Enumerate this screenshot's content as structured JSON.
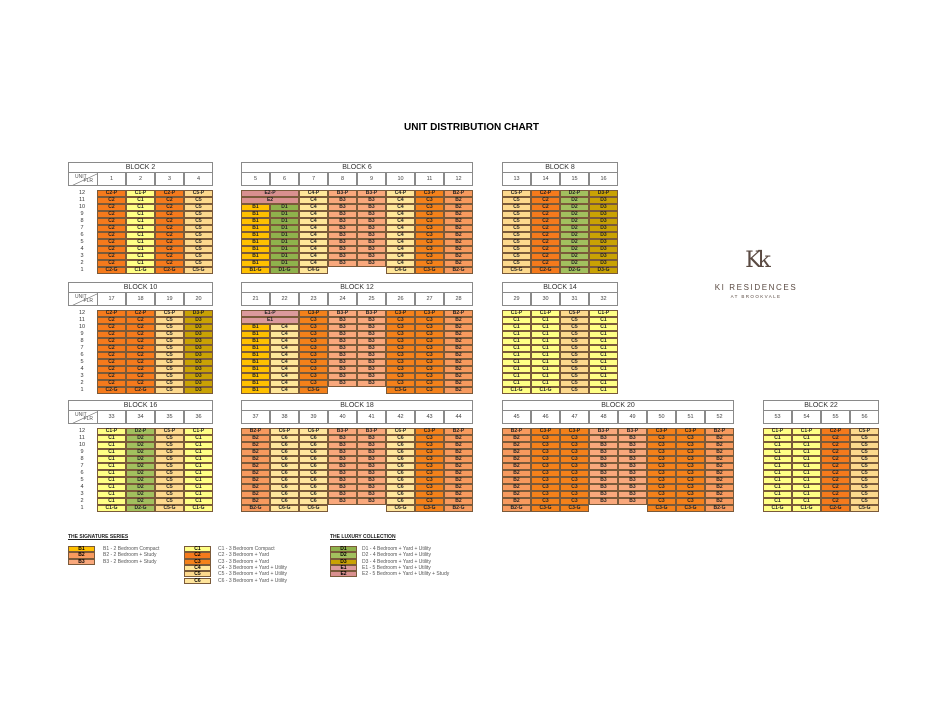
{
  "title": "UNIT DISTRIBUTION CHART",
  "unit_label": "UNIT",
  "flr_label": "FLR",
  "floors": [
    "12",
    "11",
    "10",
    "9",
    "8",
    "7",
    "6",
    "5",
    "4",
    "3",
    "2",
    "1"
  ],
  "colors": {
    "B1": "#ffc000",
    "B2": "#f79a5e",
    "B3": "#f9a87c",
    "C1": "#ffff85",
    "C2": "#f57a1c",
    "C3": "#f4811a",
    "C4": "#ffe699",
    "C5": "#fdd98d",
    "C6": "#ffe59c",
    "D1": "#8fb24c",
    "D2": "#a2c05e",
    "D3": "#c9a204",
    "E1": "#dc9a9c",
    "E2": "#d9908f"
  },
  "blocks": [
    {
      "name": "BLOCK  2",
      "units": [
        "1",
        "2",
        "3",
        "4"
      ],
      "columns": [
        {
          "stack": [
            [
              "C2-P",
              1
            ],
            [
              "C2",
              10
            ],
            [
              "C2-G",
              1
            ]
          ]
        },
        {
          "stack": [
            [
              "C1-P",
              1
            ],
            [
              "C1",
              10
            ],
            [
              "C1-G",
              1
            ]
          ]
        },
        {
          "stack": [
            [
              "C2-P",
              1
            ],
            [
              "C2",
              10
            ],
            [
              "C2-G",
              1
            ]
          ]
        },
        {
          "stack": [
            [
              "C5-P",
              1
            ],
            [
              "C5",
              10
            ],
            [
              "C5-G",
              1
            ]
          ]
        }
      ]
    },
    {
      "name": "BLOCK  6",
      "units": [
        "5",
        "6",
        "7",
        "8",
        "9",
        "10",
        "11",
        "12"
      ],
      "columns": [
        {
          "stack": [
            [
              "E2-P",
              1
            ],
            [
              "E2",
              1
            ],
            [
              "B1",
              9
            ],
            [
              "B1-G",
              1
            ]
          ]
        },
        {
          "stack": [
            [
              null,
              2
            ],
            [
              "D1",
              9
            ],
            [
              "D1-G",
              1
            ]
          ]
        },
        {
          "stack": [
            [
              "C4-P",
              1
            ],
            [
              "C4",
              10
            ],
            [
              "C4-G",
              1
            ]
          ]
        },
        {
          "stack": [
            [
              "B3-P",
              1
            ],
            [
              "B3",
              10
            ],
            [
              "",
              1
            ]
          ]
        },
        {
          "stack": [
            [
              "B3-P",
              1
            ],
            [
              "B3",
              10
            ],
            [
              "",
              1
            ]
          ]
        },
        {
          "stack": [
            [
              "C4-P",
              1
            ],
            [
              "C4",
              10
            ],
            [
              "C4-G",
              1
            ]
          ]
        },
        {
          "stack": [
            [
              "C3-P",
              1
            ],
            [
              "C3",
              10
            ],
            [
              "C3-G",
              1
            ]
          ]
        },
        {
          "stack": [
            [
              "B2-P",
              1
            ],
            [
              "B2",
              10
            ],
            [
              "B2-G",
              1
            ]
          ]
        }
      ]
    },
    {
      "name": "BLOCK  8",
      "units": [
        "13",
        "14",
        "15",
        "16"
      ],
      "columns": [
        {
          "stack": [
            [
              "C5-P",
              1
            ],
            [
              "C5",
              10
            ],
            [
              "C5-G",
              1
            ]
          ]
        },
        {
          "stack": [
            [
              "C2-P",
              1
            ],
            [
              "C2",
              10
            ],
            [
              "C2-G",
              1
            ]
          ]
        },
        {
          "stack": [
            [
              "D2-P",
              1
            ],
            [
              "D2",
              10
            ],
            [
              "D2-G",
              1
            ]
          ]
        },
        {
          "stack": [
            [
              "D3-P",
              1
            ],
            [
              "D3",
              10
            ],
            [
              "D3-G",
              1
            ]
          ]
        }
      ]
    },
    {
      "name": "BLOCK  10",
      "units": [
        "17",
        "18",
        "19",
        "20"
      ],
      "columns": [
        {
          "stack": [
            [
              "C2-P",
              1
            ],
            [
              "C2",
              10
            ],
            [
              "C2-G",
              1
            ]
          ]
        },
        {
          "stack": [
            [
              "C2-P",
              1
            ],
            [
              "C2",
              10
            ],
            [
              "C2-G",
              1
            ]
          ]
        },
        {
          "stack": [
            [
              "C5-P",
              1
            ],
            [
              "C5",
              11
            ]
          ]
        },
        {
          "stack": [
            [
              "D3-P",
              1
            ],
            [
              "D3",
              11
            ]
          ]
        }
      ]
    },
    {
      "name": "BLOCK  12",
      "units": [
        "21",
        "22",
        "23",
        "24",
        "25",
        "26",
        "27",
        "28"
      ],
      "columns": [
        {
          "stack": [
            [
              "E1-P",
              1
            ],
            [
              "E1",
              1
            ],
            [
              "B1",
              10
            ]
          ]
        },
        {
          "stack": [
            [
              null,
              2
            ],
            [
              "C4",
              10
            ]
          ]
        },
        {
          "stack": [
            [
              "C3-P",
              1
            ],
            [
              "C3",
              10
            ],
            [
              "C3-G",
              1
            ]
          ]
        },
        {
          "stack": [
            [
              "B3-P",
              1
            ],
            [
              "B3",
              10
            ],
            [
              "",
              1
            ]
          ]
        },
        {
          "stack": [
            [
              "B3-P",
              1
            ],
            [
              "B3",
              10
            ],
            [
              "",
              1
            ]
          ]
        },
        {
          "stack": [
            [
              "C3-P",
              1
            ],
            [
              "C3",
              10
            ],
            [
              "C3-G",
              1
            ]
          ]
        },
        {
          "stack": [
            [
              "C3-P",
              1
            ],
            [
              "C3",
              11
            ]
          ]
        },
        {
          "stack": [
            [
              "B2-P",
              1
            ],
            [
              "B2",
              11
            ]
          ]
        }
      ]
    },
    {
      "name": "BLOCK  14",
      "units": [
        "29",
        "30",
        "31",
        "32"
      ],
      "columns": [
        {
          "stack": [
            [
              "C1-P",
              1
            ],
            [
              "C1",
              10
            ],
            [
              "C1-G",
              1
            ]
          ]
        },
        {
          "stack": [
            [
              "C1-P",
              1
            ],
            [
              "C1",
              10
            ],
            [
              "C1-G",
              1
            ]
          ]
        },
        {
          "stack": [
            [
              "C5-P",
              1
            ],
            [
              "C5",
              11
            ]
          ]
        },
        {
          "stack": [
            [
              "C1-P",
              1
            ],
            [
              "C1",
              11
            ]
          ]
        }
      ]
    },
    {
      "name": "BLOCK  16",
      "units": [
        "33",
        "34",
        "35",
        "36"
      ],
      "columns": [
        {
          "stack": [
            [
              "C1-P",
              1
            ],
            [
              "C1",
              10
            ],
            [
              "C1-G",
              1
            ]
          ]
        },
        {
          "stack": [
            [
              "D2-P",
              1
            ],
            [
              "D2",
              10
            ],
            [
              "D2-G",
              1
            ]
          ]
        },
        {
          "stack": [
            [
              "C5-P",
              1
            ],
            [
              "C5",
              10
            ],
            [
              "C5-G",
              1
            ]
          ]
        },
        {
          "stack": [
            [
              "C1-P",
              1
            ],
            [
              "C1",
              10
            ],
            [
              "C1-G",
              1
            ]
          ]
        }
      ]
    },
    {
      "name": "BLOCK  18",
      "units": [
        "37",
        "38",
        "39",
        "40",
        "41",
        "42",
        "43",
        "44"
      ],
      "columns": [
        {
          "stack": [
            [
              "B2-P",
              1
            ],
            [
              "B2",
              10
            ],
            [
              "B2-G",
              1
            ]
          ]
        },
        {
          "stack": [
            [
              "C6-P",
              1
            ],
            [
              "C6",
              10
            ],
            [
              "C6-G",
              1
            ]
          ]
        },
        {
          "stack": [
            [
              "C6-P",
              1
            ],
            [
              "C6",
              10
            ],
            [
              "C6-G",
              1
            ]
          ]
        },
        {
          "stack": [
            [
              "B3-P",
              1
            ],
            [
              "B3",
              10
            ],
            [
              "",
              1
            ]
          ]
        },
        {
          "stack": [
            [
              "B3-P",
              1
            ],
            [
              "B3",
              10
            ],
            [
              "",
              1
            ]
          ]
        },
        {
          "stack": [
            [
              "C6-P",
              1
            ],
            [
              "C6",
              10
            ],
            [
              "C6-G",
              1
            ]
          ]
        },
        {
          "stack": [
            [
              "C3-P",
              1
            ],
            [
              "C3",
              10
            ],
            [
              "C3-G",
              1
            ]
          ]
        },
        {
          "stack": [
            [
              "B2-P",
              1
            ],
            [
              "B2",
              10
            ],
            [
              "B2-G",
              1
            ]
          ]
        }
      ]
    },
    {
      "name": "BLOCK  20",
      "units": [
        "45",
        "46",
        "47",
        "48",
        "49",
        "50",
        "51",
        "52"
      ],
      "columns": [
        {
          "stack": [
            [
              "B2-P",
              1
            ],
            [
              "B2",
              10
            ],
            [
              "B2-G",
              1
            ]
          ]
        },
        {
          "stack": [
            [
              "C3-P",
              1
            ],
            [
              "C3",
              10
            ],
            [
              "C3-G",
              1
            ]
          ]
        },
        {
          "stack": [
            [
              "C3-P",
              1
            ],
            [
              "C3",
              10
            ],
            [
              "C3-G",
              1
            ]
          ]
        },
        {
          "stack": [
            [
              "B3-P",
              1
            ],
            [
              "B3",
              10
            ],
            [
              "",
              1
            ]
          ]
        },
        {
          "stack": [
            [
              "B3-P",
              1
            ],
            [
              "B3",
              10
            ],
            [
              "",
              1
            ]
          ]
        },
        {
          "stack": [
            [
              "C3-P",
              1
            ],
            [
              "C3",
              10
            ],
            [
              "C3-G",
              1
            ]
          ]
        },
        {
          "stack": [
            [
              "C3-P",
              1
            ],
            [
              "C3",
              10
            ],
            [
              "C3-G",
              1
            ]
          ]
        },
        {
          "stack": [
            [
              "B2-P",
              1
            ],
            [
              "B2",
              10
            ],
            [
              "B2-G",
              1
            ]
          ]
        }
      ]
    },
    {
      "name": "BLOCK  22",
      "units": [
        "53",
        "54",
        "55",
        "56"
      ],
      "columns": [
        {
          "stack": [
            [
              "C1-P",
              1
            ],
            [
              "C1",
              10
            ],
            [
              "C1-G",
              1
            ]
          ]
        },
        {
          "stack": [
            [
              "C1-P",
              1
            ],
            [
              "C1",
              10
            ],
            [
              "C1-G",
              1
            ]
          ]
        },
        {
          "stack": [
            [
              "C2-P",
              1
            ],
            [
              "C2",
              10
            ],
            [
              "C2-G",
              1
            ]
          ]
        },
        {
          "stack": [
            [
              "C5-P",
              1
            ],
            [
              "C5",
              10
            ],
            [
              "C5-G",
              1
            ]
          ]
        }
      ]
    }
  ],
  "legend": {
    "signature_title": "THE SIGNATURE SERIES",
    "signature_b": [
      {
        "code": "B1",
        "desc": "B1 - 2 Bedroom Compact"
      },
      {
        "code": "B2",
        "desc": "B2 - 2 Bedroom + Study"
      },
      {
        "code": "B3",
        "desc": "B3 - 2 Bedroom + Study"
      }
    ],
    "signature_c": [
      {
        "code": "C1",
        "desc": "C1 - 3 Bedroom Compact"
      },
      {
        "code": "C2",
        "desc": "C2 - 3 Bedroom + Yard"
      },
      {
        "code": "C3",
        "desc": "C3 - 3 Bedroom + Yard"
      },
      {
        "code": "C4",
        "desc": "C4 - 3 Bedroom + Yard + Utility"
      },
      {
        "code": "C5",
        "desc": "C5 - 3 Bedroom + Yard + Utility"
      },
      {
        "code": "C6",
        "desc": "C6 - 3 Bedroom + Yard + Utility"
      }
    ],
    "luxury_title": "THE LUXURY COLLECTION",
    "luxury": [
      {
        "code": "D1",
        "desc": "D1 - 4 Bedroom + Yard + Utility"
      },
      {
        "code": "D2",
        "desc": "D2 - 4 Bedroom + Yard + Utility"
      },
      {
        "code": "D3",
        "desc": "D3 - 4 Bedroom + Yard + Utility"
      },
      {
        "code": "E1",
        "desc": "E1 - 5 Bedroom + Yard + Utility"
      },
      {
        "code": "E2",
        "desc": "E2 - 5 Bedroom + Yard + Utility + Study"
      }
    ]
  },
  "logo": {
    "mark": "Kk",
    "name": "KI RESIDENCES",
    "sub": "AT BROOKVALE"
  }
}
